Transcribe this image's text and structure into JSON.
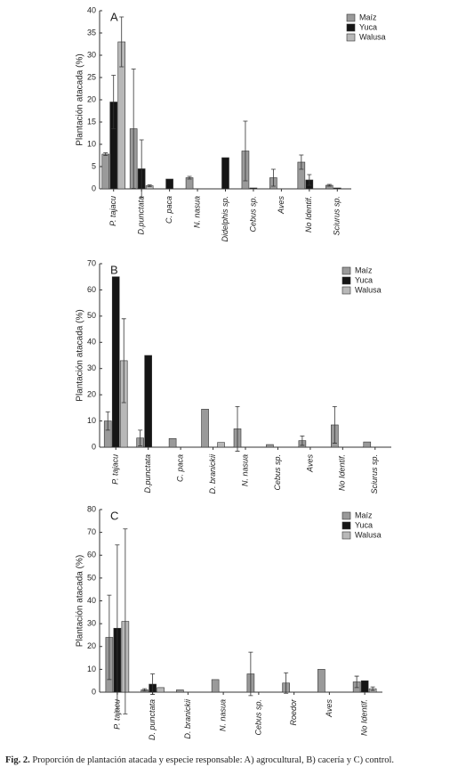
{
  "chart_data": [
    {
      "type": "bar",
      "title": "A",
      "y_label": "Plantación atacada (%)",
      "categories": [
        "P. tajacu",
        "D.punctata",
        "C. paca",
        "N. nasua",
        "Didelphis sp.",
        "Cebus sp.",
        "Aves",
        "No Identif.",
        "Sciurus sp."
      ],
      "series": [
        {
          "name": "Maíz",
          "color": "#9a9a9a",
          "values": [
            7.8,
            13.5,
            null,
            2.5,
            null,
            8.5,
            2.5,
            6,
            0.8
          ],
          "errors": [
            0.3,
            13.4,
            null,
            0.3,
            null,
            6.7,
            1.9,
            1.6,
            0.2
          ]
        },
        {
          "name": "Yuca",
          "color": "#151515",
          "values": [
            19.5,
            4.5,
            2.2,
            null,
            7,
            0.2,
            null,
            2,
            0.2
          ],
          "errors": [
            6,
            6.5,
            null,
            null,
            null,
            null,
            null,
            1.2,
            null
          ]
        },
        {
          "name": "Walusa",
          "color": "#b8b8b8",
          "values": [
            33,
            0.7,
            null,
            null,
            null,
            null,
            null,
            null,
            null
          ],
          "errors": [
            5.6,
            0.2,
            null,
            null,
            null,
            null,
            null,
            null,
            null
          ]
        }
      ],
      "ylim": [
        0,
        40
      ],
      "yticks": [
        0,
        5,
        10,
        15,
        20,
        25,
        30,
        35,
        40
      ]
    },
    {
      "type": "bar",
      "title": "B",
      "y_label": "Plantación atacada (%)",
      "categories": [
        "P. tajacu",
        "D.punctata",
        "C. paca",
        "D. branickii",
        "N. nasua",
        "Cebus sp.",
        "Aves",
        "No Identif.",
        "Sciurus sp."
      ],
      "series": [
        {
          "name": "Maíz",
          "color": "#9a9a9a",
          "values": [
            10,
            3.5,
            3.3,
            14.5,
            7,
            1,
            2.5,
            8.5,
            2
          ],
          "errors": [
            3.5,
            3,
            null,
            null,
            8.5,
            null,
            1.8,
            7,
            null
          ]
        },
        {
          "name": "Yuca",
          "color": "#151515",
          "values": [
            65,
            35,
            null,
            null,
            null,
            null,
            null,
            null,
            null
          ],
          "errors": [
            null,
            null,
            null,
            null,
            null,
            null,
            null,
            null,
            null
          ]
        },
        {
          "name": "Walusa",
          "color": "#b8b8b8",
          "values": [
            33,
            null,
            null,
            1.8,
            null,
            null,
            null,
            null,
            null
          ],
          "errors": [
            16,
            null,
            null,
            null,
            null,
            null,
            null,
            null,
            null
          ]
        }
      ],
      "ylim": [
        0,
        70
      ],
      "yticks": [
        0,
        10,
        20,
        30,
        40,
        50,
        60,
        70
      ]
    },
    {
      "type": "bar",
      "title": "C",
      "y_label": "Plantación atacada (%)",
      "categories": [
        "P. tajacu",
        "D. punctata",
        "D. branickii",
        "N. nasua",
        "Cebus sp.",
        "Roedor",
        "Aves",
        "No Identif."
      ],
      "series": [
        {
          "name": "Maíz",
          "color": "#9a9a9a",
          "values": [
            24,
            1,
            1,
            5.5,
            8,
            4,
            10,
            4.5
          ],
          "errors": [
            18.5,
            0.5,
            null,
            null,
            9.5,
            4.5,
            null,
            2.5
          ]
        },
        {
          "name": "Yuca",
          "color": "#151515",
          "values": [
            28,
            3.5,
            null,
            null,
            null,
            null,
            null,
            5
          ],
          "errors": [
            36.5,
            4.5,
            null,
            null,
            null,
            null,
            null,
            null
          ]
        },
        {
          "name": "Walusa",
          "color": "#b8b8b8",
          "values": [
            31,
            2,
            null,
            null,
            null,
            null,
            null,
            1.5
          ],
          "errors": [
            40.5,
            null,
            null,
            null,
            null,
            null,
            null,
            0.8
          ]
        }
      ],
      "ylim": [
        0,
        80
      ],
      "yticks": [
        0,
        10,
        20,
        30,
        40,
        50,
        60,
        70,
        80
      ]
    }
  ],
  "caption": {
    "label": "Fig. 2.",
    "text": "Proporción de plantación atacada y especie responsable: A) agrocultural, B) cacería y C) control."
  }
}
